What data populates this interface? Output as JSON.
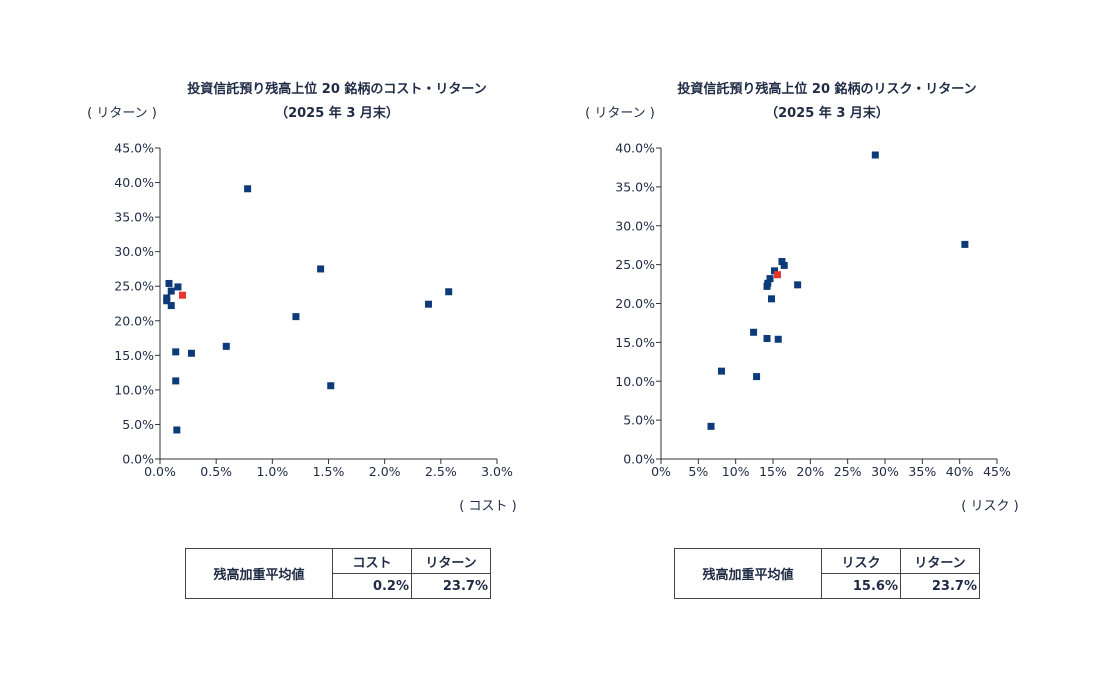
{
  "chart_data": [
    {
      "type": "scatter",
      "title": "投資信託預り残高上位 20 銘柄のコスト・リターン",
      "subtitle": "（2025 年 3 月末）",
      "ylabel": "( リターン )",
      "xlabel": "( コスト )",
      "xlim": [
        0,
        3.0
      ],
      "ylim": [
        0,
        45.0
      ],
      "x_ticks": [
        0,
        0.5,
        1.0,
        1.5,
        2.0,
        2.5,
        3.0
      ],
      "x_tick_labels": [
        "0.0%",
        "0.5%",
        "1.0%",
        "1.5%",
        "2.0%",
        "2.5%",
        "3.0%"
      ],
      "y_ticks": [
        0,
        5,
        10,
        15,
        20,
        25,
        30,
        35,
        40,
        45
      ],
      "y_tick_labels": [
        "0.0%",
        "5.0%",
        "10.0%",
        "15.0%",
        "20.0%",
        "25.0%",
        "30.0%",
        "35.0%",
        "40.0%",
        "45.0%"
      ],
      "series": [
        {
          "name": "上位20銘柄",
          "color": "#0d3a78",
          "points": [
            [
              0.78,
              39.1
            ],
            [
              1.43,
              27.5
            ],
            [
              0.08,
              25.4
            ],
            [
              0.16,
              24.9
            ],
            [
              0.1,
              24.3
            ],
            [
              2.57,
              24.2
            ],
            [
              0.06,
              23.3
            ],
            [
              0.06,
              22.9
            ],
            [
              0.1,
              22.2
            ],
            [
              2.39,
              22.4
            ],
            [
              1.21,
              20.6
            ],
            [
              0.59,
              16.3
            ],
            [
              0.14,
              15.5
            ],
            [
              0.28,
              15.3
            ],
            [
              0.14,
              11.3
            ],
            [
              1.52,
              10.6
            ],
            [
              0.15,
              4.2
            ]
          ]
        },
        {
          "name": "加重平均値",
          "color": "#e8342e",
          "points": [
            [
              0.2,
              23.7
            ]
          ]
        }
      ]
    },
    {
      "type": "scatter",
      "title": "投資信託預り残高上位 20 銘柄のリスク・リターン",
      "subtitle": "（2025 年 3 月末）",
      "ylabel": "( リターン )",
      "xlabel": "( リスク )",
      "xlim": [
        0,
        45
      ],
      "ylim": [
        0,
        40.0
      ],
      "x_ticks": [
        0,
        5,
        10,
        15,
        20,
        25,
        30,
        35,
        40,
        45
      ],
      "x_tick_labels": [
        "0%",
        "5%",
        "10%",
        "15%",
        "20%",
        "25%",
        "30%",
        "35%",
        "40%",
        "45%"
      ],
      "y_ticks": [
        0,
        5,
        10,
        15,
        20,
        25,
        30,
        35,
        40
      ],
      "y_tick_labels": [
        "0.0%",
        "5.0%",
        "10.0%",
        "15.0%",
        "20.0%",
        "25.0%",
        "30.0%",
        "35.0%",
        "40.0%"
      ],
      "series": [
        {
          "name": "上位20銘柄",
          "color": "#0d3a78",
          "points": [
            [
              28.7,
              39.1
            ],
            [
              40.7,
              27.6
            ],
            [
              16.2,
              25.4
            ],
            [
              16.5,
              24.9
            ],
            [
              15.2,
              24.2
            ],
            [
              14.6,
              23.2
            ],
            [
              14.3,
              22.6
            ],
            [
              14.2,
              22.2
            ],
            [
              18.3,
              22.4
            ],
            [
              14.8,
              20.6
            ],
            [
              12.4,
              16.3
            ],
            [
              14.2,
              15.5
            ],
            [
              15.7,
              15.4
            ],
            [
              8.1,
              11.3
            ],
            [
              12.8,
              10.6
            ],
            [
              6.7,
              4.2
            ]
          ]
        },
        {
          "name": "加重平均値",
          "color": "#e8342e",
          "points": [
            [
              15.6,
              23.7
            ]
          ]
        }
      ]
    }
  ],
  "tables": [
    {
      "row_label": "残高加重平均値",
      "col1_label": "コスト",
      "col2_label": "リターン",
      "col1_value": "0.2%",
      "col2_value": "23.7%"
    },
    {
      "row_label": "残高加重平均値",
      "col1_label": "リスク",
      "col2_label": "リターン",
      "col1_value": "15.6%",
      "col2_value": "23.7%"
    }
  ]
}
